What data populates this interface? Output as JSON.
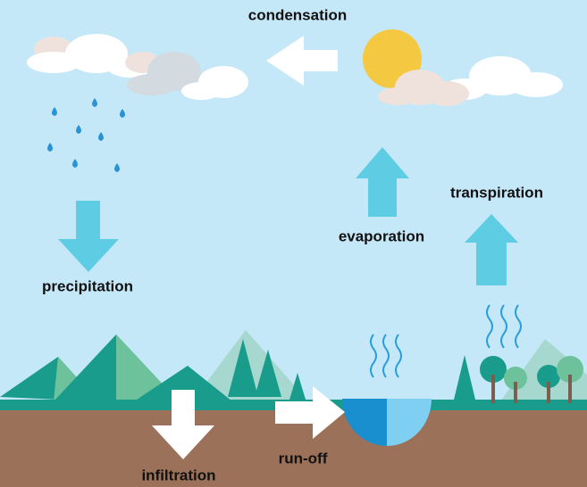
{
  "nodes": [
    {
      "label": "condensation"
    },
    {
      "label": "transpiration"
    },
    {
      "label": "evaporation"
    },
    {
      "label": "precipitation"
    },
    {
      "label": "run-off"
    },
    {
      "label": "infiltration"
    }
  ]
}
